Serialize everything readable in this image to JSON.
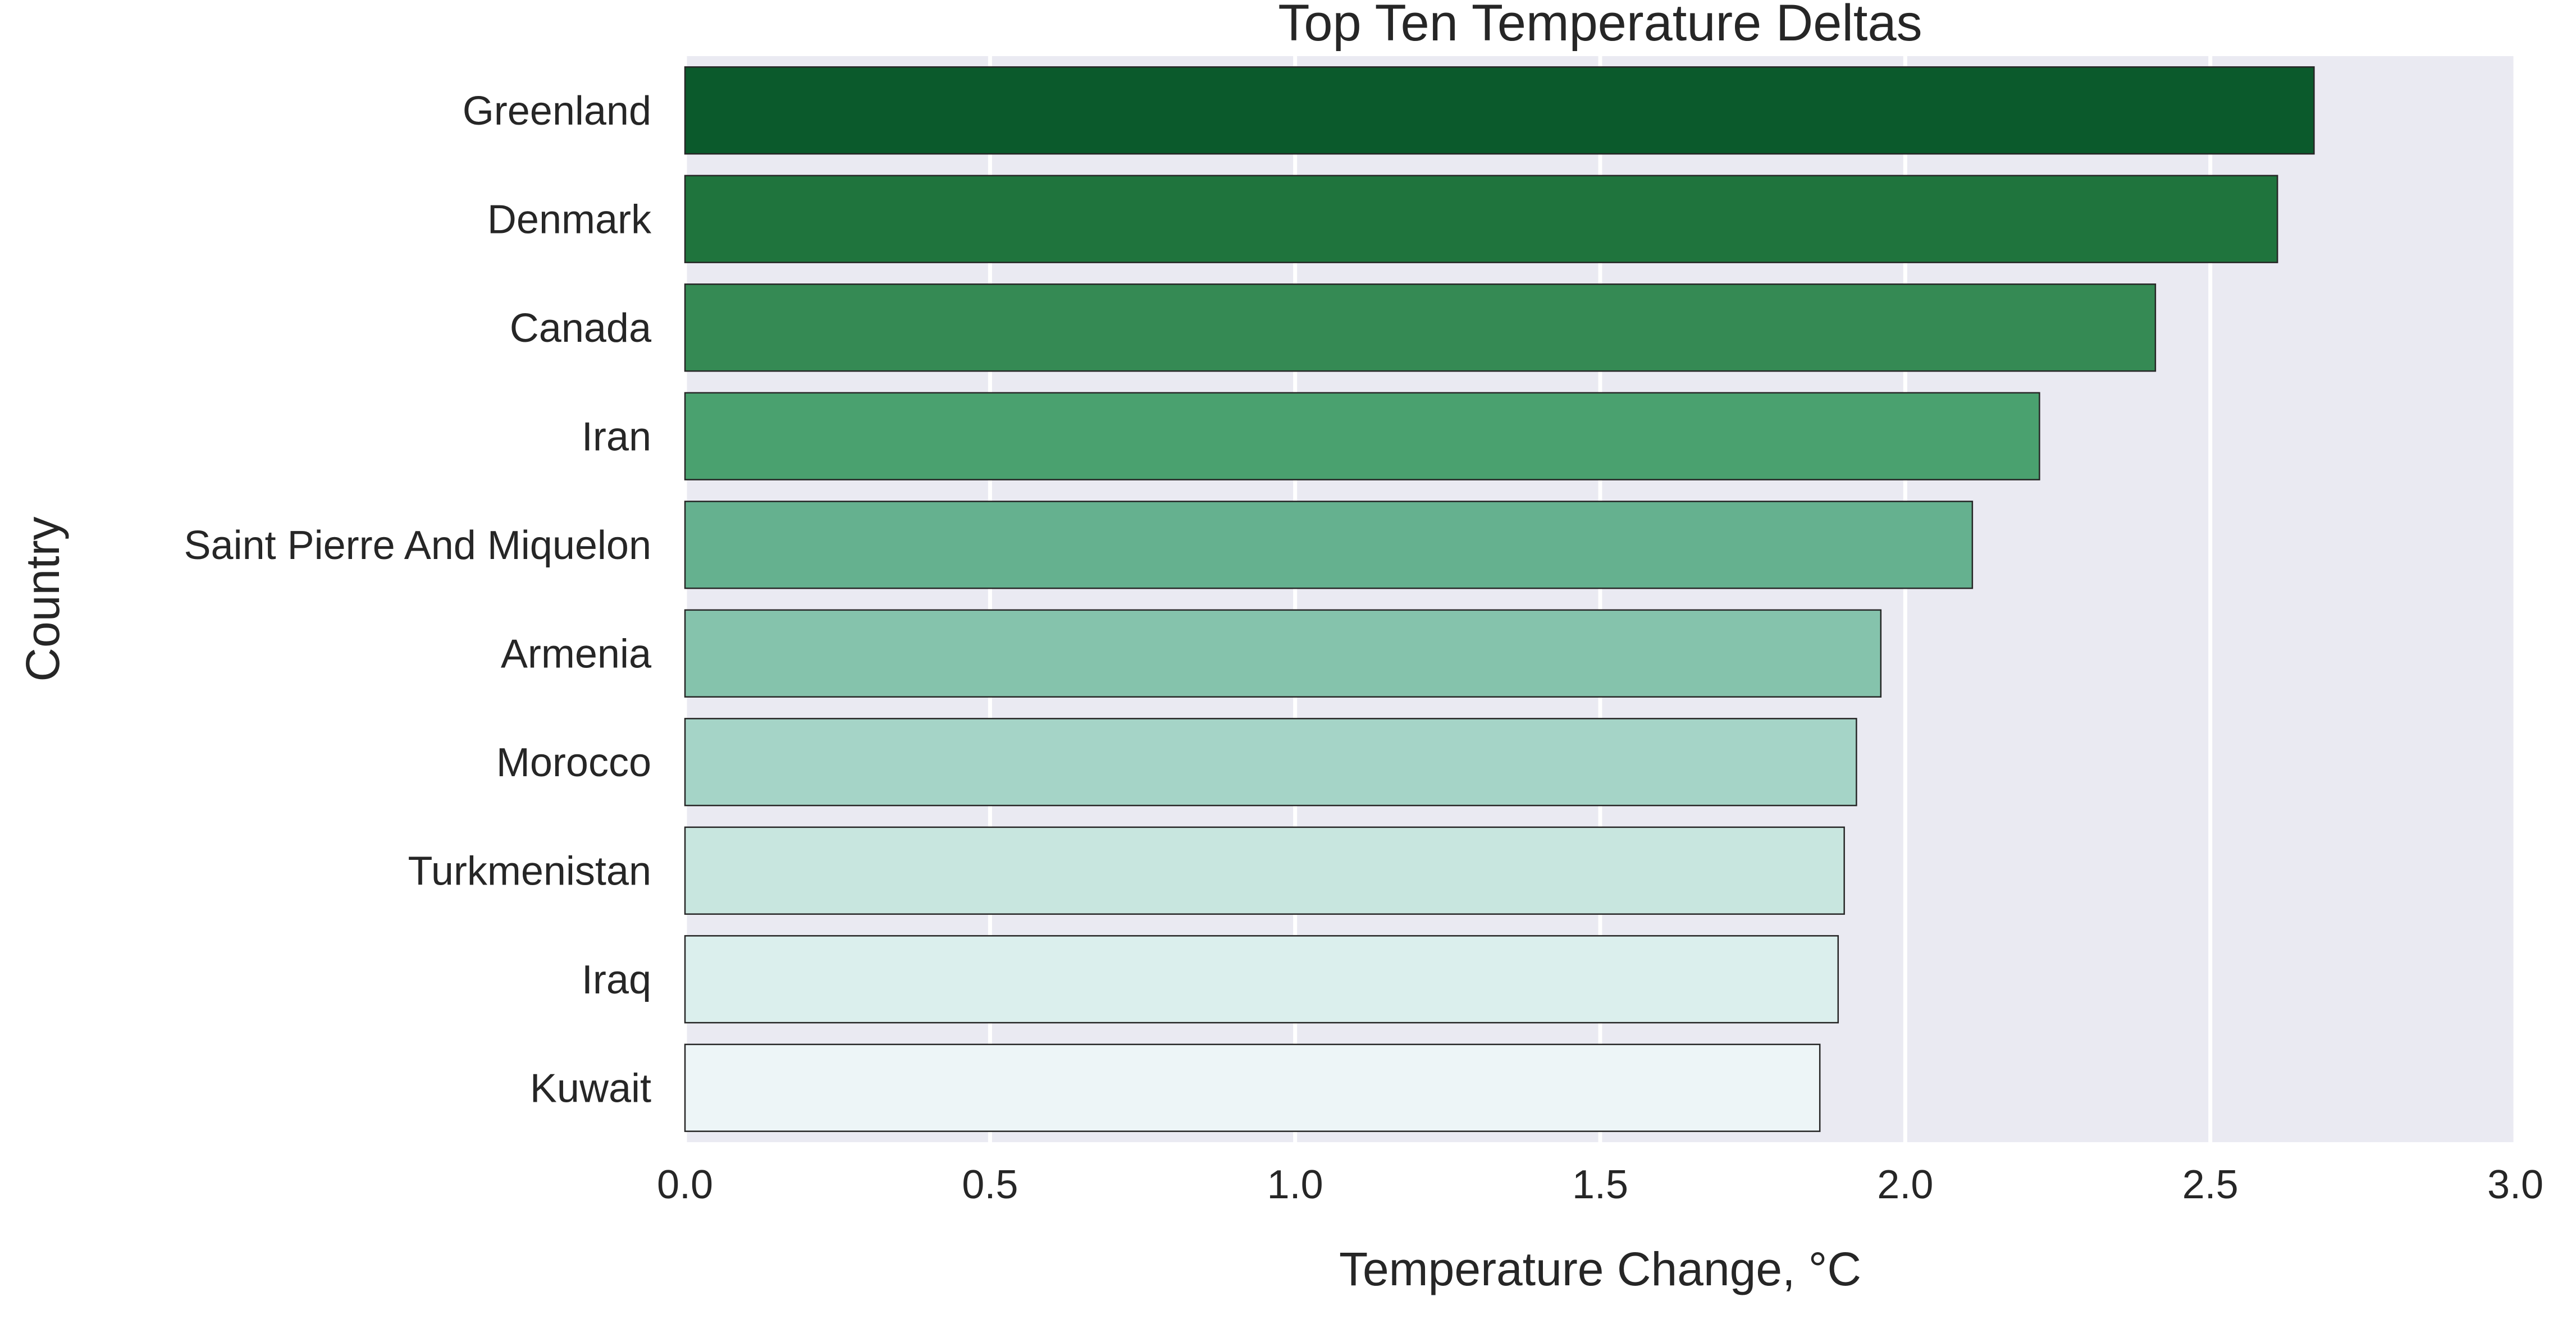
{
  "chart_data": {
    "type": "bar",
    "orientation": "horizontal",
    "title": "Top Ten Temperature Deltas",
    "xlabel": "Temperature Change, °C",
    "ylabel": "Country",
    "xlim": [
      0,
      3.0
    ],
    "xticks": [
      "0.0",
      "0.5",
      "1.0",
      "1.5",
      "2.0",
      "2.5",
      "3.0"
    ],
    "xtick_values": [
      0,
      0.5,
      1.0,
      1.5,
      2.0,
      2.5,
      3.0
    ],
    "grid": true,
    "categories": [
      "Greenland",
      "Denmark",
      "Canada",
      "Iran",
      "Saint Pierre And Miquelon",
      "Armenia",
      "Morocco",
      "Turkmenistan",
      "Iraq",
      "Kuwait"
    ],
    "values": [
      2.67,
      2.61,
      2.41,
      2.22,
      2.11,
      1.96,
      1.92,
      1.9,
      1.89,
      1.86
    ],
    "colors": [
      "#0b5a2c",
      "#1f743d",
      "#358a54",
      "#4aa16f",
      "#65b18f",
      "#85c3ac",
      "#a5d4c7",
      "#c8e6df",
      "#dbefed",
      "#edf5f7"
    ],
    "background": "#eaeaf2"
  }
}
